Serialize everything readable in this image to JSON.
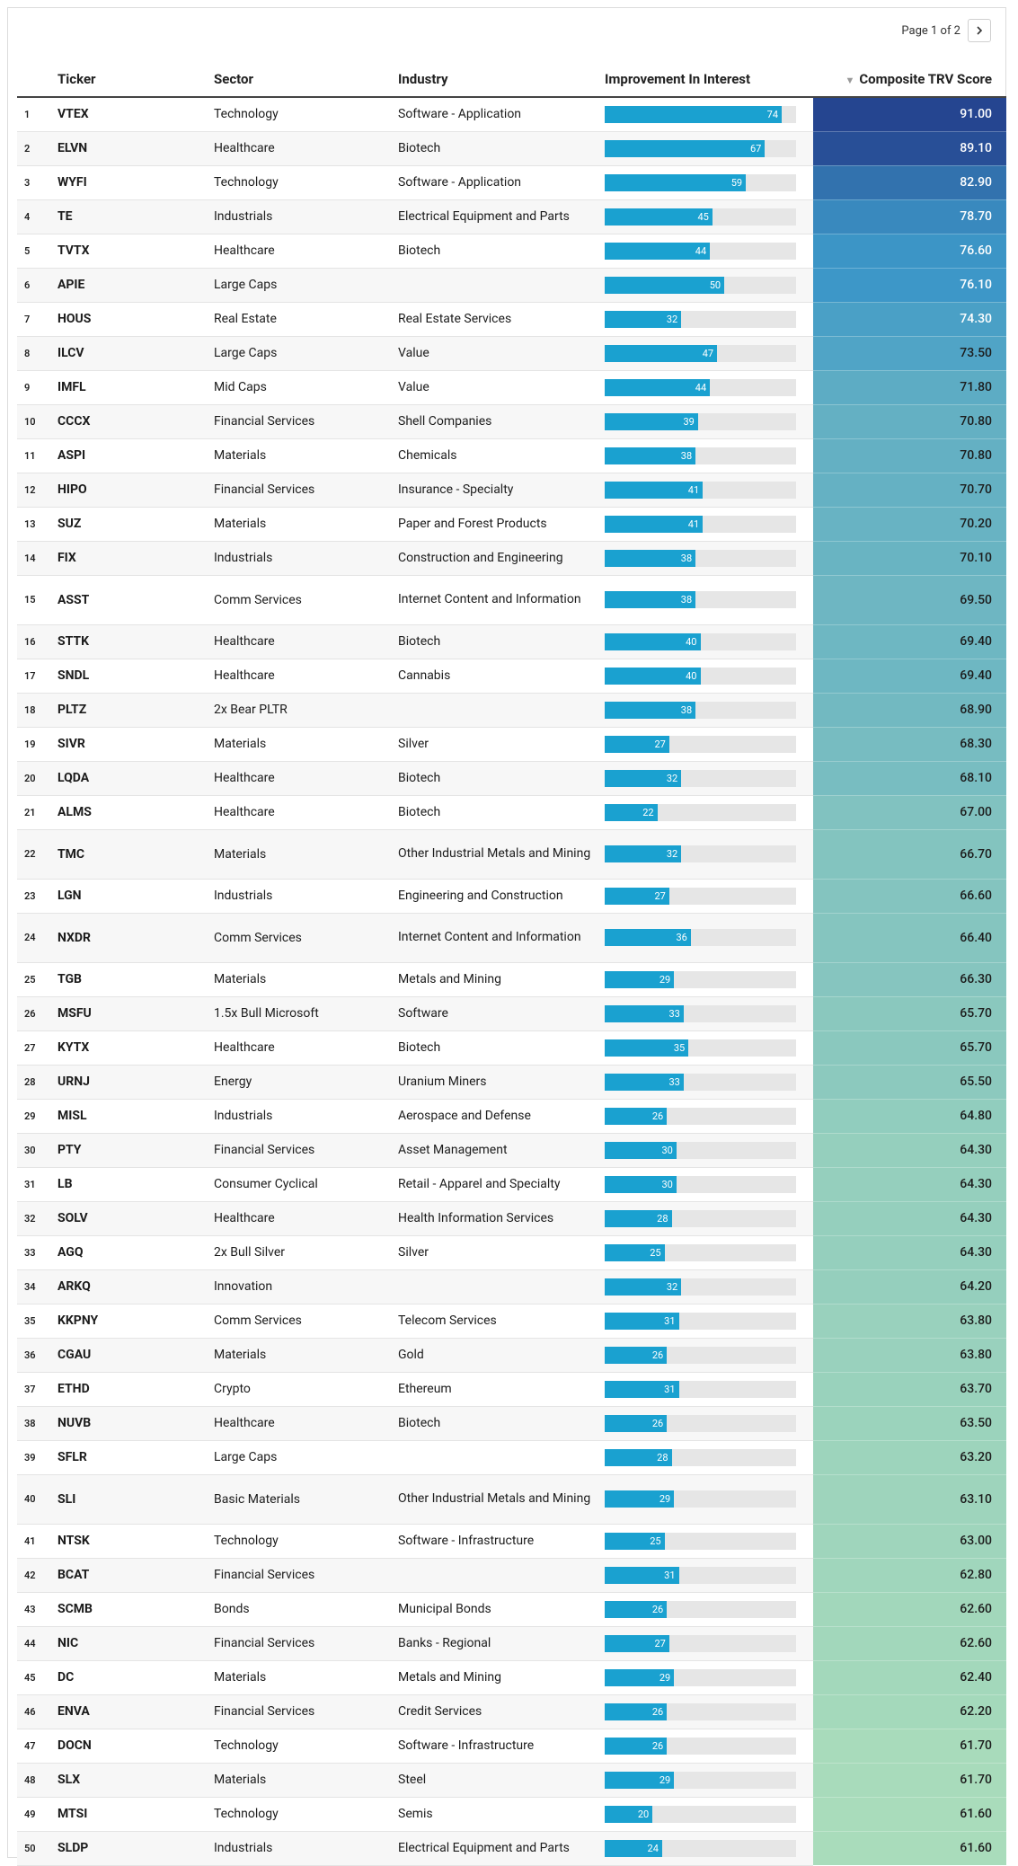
{
  "pager": {
    "label": "Page 1 of 2",
    "next_icon": "chevron-right-icon"
  },
  "headers": {
    "rank": "",
    "ticker": "Ticker",
    "sector": "Sector",
    "industry": "Industry",
    "improvement": "Improvement In Interest",
    "score_sort_icon": "▼",
    "score": "Composite TRV Score"
  },
  "improvement_max": 80,
  "score_scale": {
    "low": 60,
    "high": 92,
    "low_color": "#b5e3b9",
    "mid_color": "#3d98c8",
    "high_color": "#233f8c"
  },
  "rows": [
    {
      "rank": "1",
      "ticker": "VTEX",
      "sector": "Technology",
      "industry": "Software - Application",
      "improvement": 74,
      "score": "91.00"
    },
    {
      "rank": "2",
      "ticker": "ELVN",
      "sector": "Healthcare",
      "industry": "Biotech",
      "improvement": 67,
      "score": "89.10"
    },
    {
      "rank": "3",
      "ticker": "WYFI",
      "sector": "Technology",
      "industry": "Software - Application",
      "improvement": 59,
      "score": "82.90"
    },
    {
      "rank": "4",
      "ticker": "TE",
      "sector": "Industrials",
      "industry": "Electrical Equipment and Parts",
      "improvement": 45,
      "score": "78.70"
    },
    {
      "rank": "5",
      "ticker": "TVTX",
      "sector": "Healthcare",
      "industry": "Biotech",
      "improvement": 44,
      "score": "76.60"
    },
    {
      "rank": "6",
      "ticker": "APIE",
      "sector": "Large Caps",
      "industry": "",
      "improvement": 50,
      "score": "76.10"
    },
    {
      "rank": "7",
      "ticker": "HOUS",
      "sector": "Real Estate",
      "industry": "Real Estate Services",
      "improvement": 32,
      "score": "74.30"
    },
    {
      "rank": "8",
      "ticker": "ILCV",
      "sector": "Large Caps",
      "industry": "Value",
      "improvement": 47,
      "score": "73.50"
    },
    {
      "rank": "9",
      "ticker": "IMFL",
      "sector": "Mid Caps",
      "industry": "Value",
      "improvement": 44,
      "score": "71.80"
    },
    {
      "rank": "10",
      "ticker": "CCCX",
      "sector": "Financial Services",
      "industry": "Shell Companies",
      "improvement": 39,
      "score": "70.80"
    },
    {
      "rank": "11",
      "ticker": "ASPI",
      "sector": "Materials",
      "industry": "Chemicals",
      "improvement": 38,
      "score": "70.80"
    },
    {
      "rank": "12",
      "ticker": "HIPO",
      "sector": "Financial Services",
      "industry": "Insurance - Specialty",
      "improvement": 41,
      "score": "70.70"
    },
    {
      "rank": "13",
      "ticker": "SUZ",
      "sector": "Materials",
      "industry": "Paper and Forest Products",
      "improvement": 41,
      "score": "70.20"
    },
    {
      "rank": "14",
      "ticker": "FIX",
      "sector": "Industrials",
      "industry": "Construction and Engineering",
      "improvement": 38,
      "score": "70.10"
    },
    {
      "rank": "15",
      "ticker": "ASST",
      "sector": "Comm Services",
      "industry": "Internet Content and Information",
      "improvement": 38,
      "score": "69.50"
    },
    {
      "rank": "16",
      "ticker": "STTK",
      "sector": "Healthcare",
      "industry": "Biotech",
      "improvement": 40,
      "score": "69.40"
    },
    {
      "rank": "17",
      "ticker": "SNDL",
      "sector": "Healthcare",
      "industry": "Cannabis",
      "improvement": 40,
      "score": "69.40"
    },
    {
      "rank": "18",
      "ticker": "PLTZ",
      "sector": "2x Bear PLTR",
      "industry": "",
      "improvement": 38,
      "score": "68.90"
    },
    {
      "rank": "19",
      "ticker": "SIVR",
      "sector": "Materials",
      "industry": "Silver",
      "improvement": 27,
      "score": "68.30"
    },
    {
      "rank": "20",
      "ticker": "LQDA",
      "sector": "Healthcare",
      "industry": "Biotech",
      "improvement": 32,
      "score": "68.10"
    },
    {
      "rank": "21",
      "ticker": "ALMS",
      "sector": "Healthcare",
      "industry": "Biotech",
      "improvement": 22,
      "score": "67.00"
    },
    {
      "rank": "22",
      "ticker": "TMC",
      "sector": "Materials",
      "industry": "Other Industrial Metals and Mining",
      "improvement": 32,
      "score": "66.70"
    },
    {
      "rank": "23",
      "ticker": "LGN",
      "sector": "Industrials",
      "industry": "Engineering and Construction",
      "improvement": 27,
      "score": "66.60"
    },
    {
      "rank": "24",
      "ticker": "NXDR",
      "sector": "Comm Services",
      "industry": "Internet Content and Information",
      "improvement": 36,
      "score": "66.40"
    },
    {
      "rank": "25",
      "ticker": "TGB",
      "sector": "Materials",
      "industry": "Metals and Mining",
      "improvement": 29,
      "score": "66.30"
    },
    {
      "rank": "26",
      "ticker": "MSFU",
      "sector": "1.5x Bull Microsoft",
      "industry": "Software",
      "improvement": 33,
      "score": "65.70"
    },
    {
      "rank": "27",
      "ticker": "KYTX",
      "sector": "Healthcare",
      "industry": "Biotech",
      "improvement": 35,
      "score": "65.70"
    },
    {
      "rank": "28",
      "ticker": "URNJ",
      "sector": "Energy",
      "industry": "Uranium Miners",
      "improvement": 33,
      "score": "65.50"
    },
    {
      "rank": "29",
      "ticker": "MISL",
      "sector": "Industrials",
      "industry": "Aerospace and Defense",
      "improvement": 26,
      "score": "64.80"
    },
    {
      "rank": "30",
      "ticker": "PTY",
      "sector": "Financial Services",
      "industry": "Asset Management",
      "improvement": 30,
      "score": "64.30"
    },
    {
      "rank": "31",
      "ticker": "LB",
      "sector": "Consumer Cyclical",
      "industry": "Retail - Apparel and Specialty",
      "improvement": 30,
      "score": "64.30"
    },
    {
      "rank": "32",
      "ticker": "SOLV",
      "sector": "Healthcare",
      "industry": "Health Information Services",
      "improvement": 28,
      "score": "64.30"
    },
    {
      "rank": "33",
      "ticker": "AGQ",
      "sector": "2x Bull Silver",
      "industry": "Silver",
      "improvement": 25,
      "score": "64.30"
    },
    {
      "rank": "34",
      "ticker": "ARKQ",
      "sector": "Innovation",
      "industry": "",
      "improvement": 32,
      "score": "64.20"
    },
    {
      "rank": "35",
      "ticker": "KKPNY",
      "sector": "Comm Services",
      "industry": "Telecom Services",
      "improvement": 31,
      "score": "63.80"
    },
    {
      "rank": "36",
      "ticker": "CGAU",
      "sector": "Materials",
      "industry": "Gold",
      "improvement": 26,
      "score": "63.80"
    },
    {
      "rank": "37",
      "ticker": "ETHD",
      "sector": "Crypto",
      "industry": "Ethereum",
      "improvement": 31,
      "score": "63.70"
    },
    {
      "rank": "38",
      "ticker": "NUVB",
      "sector": "Healthcare",
      "industry": "Biotech",
      "improvement": 26,
      "score": "63.50"
    },
    {
      "rank": "39",
      "ticker": "SFLR",
      "sector": "Large Caps",
      "industry": "",
      "improvement": 28,
      "score": "63.20"
    },
    {
      "rank": "40",
      "ticker": "SLI",
      "sector": "Basic Materials",
      "industry": "Other Industrial Metals and Mining",
      "improvement": 29,
      "score": "63.10"
    },
    {
      "rank": "41",
      "ticker": "NTSK",
      "sector": "Technology",
      "industry": "Software - Infrastructure",
      "improvement": 25,
      "score": "63.00"
    },
    {
      "rank": "42",
      "ticker": "BCAT",
      "sector": "Financial Services",
      "industry": "",
      "improvement": 31,
      "score": "62.80"
    },
    {
      "rank": "43",
      "ticker": "SCMB",
      "sector": "Bonds",
      "industry": "Municipal Bonds",
      "improvement": 26,
      "score": "62.60"
    },
    {
      "rank": "44",
      "ticker": "NIC",
      "sector": "Financial Services",
      "industry": "Banks - Regional",
      "improvement": 27,
      "score": "62.60"
    },
    {
      "rank": "45",
      "ticker": "DC",
      "sector": "Materials",
      "industry": "Metals and Mining",
      "improvement": 29,
      "score": "62.40"
    },
    {
      "rank": "46",
      "ticker": "ENVA",
      "sector": "Financial Services",
      "industry": "Credit Services",
      "improvement": 26,
      "score": "62.20"
    },
    {
      "rank": "47",
      "ticker": "DOCN",
      "sector": "Technology",
      "industry": "Software - Infrastructure",
      "improvement": 26,
      "score": "61.70"
    },
    {
      "rank": "48",
      "ticker": "SLX",
      "sector": "Materials",
      "industry": "Steel",
      "improvement": 29,
      "score": "61.70"
    },
    {
      "rank": "49",
      "ticker": "MTSI",
      "sector": "Technology",
      "industry": "Semis",
      "improvement": 20,
      "score": "61.60"
    },
    {
      "rank": "50",
      "ticker": "SLDP",
      "sector": "Industrials",
      "industry": "Electrical Equipment and Parts",
      "improvement": 24,
      "score": "61.60"
    }
  ]
}
